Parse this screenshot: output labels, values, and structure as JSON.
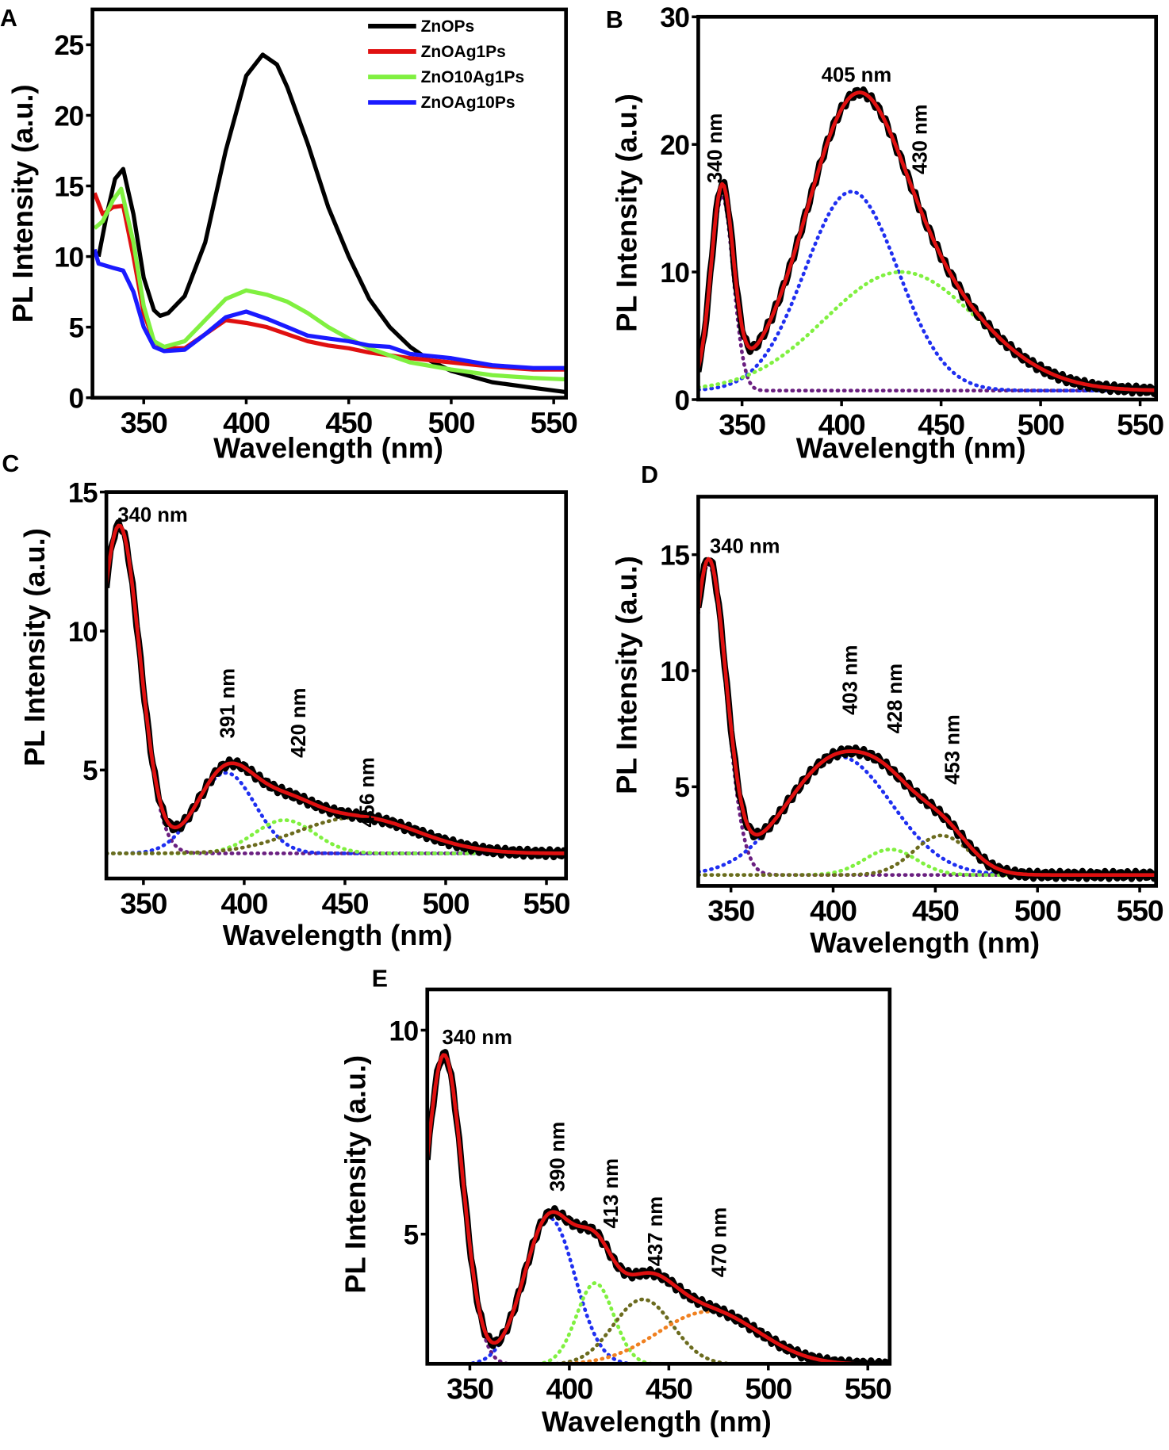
{
  "chart_data": [
    {
      "id": "A",
      "panel_label": "A",
      "type": "line",
      "xlabel": "Wavelength (nm)",
      "ylabel": "PL Intensity (a.u.)",
      "xlim": [
        325,
        556
      ],
      "ylim": [
        0,
        27.5
      ],
      "xticks": [
        350,
        400,
        450,
        500,
        550
      ],
      "yticks": [
        0,
        5,
        10,
        15,
        20,
        25
      ],
      "legend_position": "top-right",
      "series": [
        {
          "name": "ZnOPs",
          "color": "#000000",
          "x": [
            328,
            332,
            336,
            340,
            345,
            350,
            355,
            358,
            362,
            370,
            380,
            390,
            400,
            408,
            415,
            420,
            430,
            440,
            450,
            460,
            470,
            480,
            490,
            500,
            520,
            540,
            556
          ],
          "y": [
            10,
            13,
            15.5,
            16.2,
            13,
            8.5,
            6.2,
            5.8,
            6,
            7.2,
            11,
            17.5,
            22.8,
            24.3,
            23.6,
            22,
            18,
            13.5,
            10,
            7,
            5,
            3.6,
            2.6,
            1.9,
            1.1,
            0.7,
            0.4
          ]
        },
        {
          "name": "ZnOAg1Ps",
          "color": "#e01010",
          "x": [
            326,
            330,
            335,
            340,
            345,
            350,
            355,
            360,
            370,
            380,
            390,
            400,
            410,
            420,
            430,
            440,
            450,
            460,
            470,
            480,
            500,
            520,
            540,
            556
          ],
          "y": [
            14.5,
            13,
            13.5,
            13.6,
            10,
            6,
            4,
            3.5,
            3.5,
            4.5,
            5.5,
            5.3,
            5,
            4.5,
            4,
            3.7,
            3.5,
            3.2,
            3,
            2.8,
            2.5,
            2.2,
            2,
            2
          ]
        },
        {
          "name": "ZnO10Ag1Ps",
          "color": "#80f040",
          "x": [
            326,
            330,
            335,
            339,
            345,
            350,
            355,
            360,
            370,
            380,
            390,
            400,
            410,
            420,
            430,
            440,
            450,
            460,
            470,
            480,
            500,
            520,
            540,
            556
          ],
          "y": [
            12,
            12.5,
            14,
            14.8,
            11,
            6.5,
            4,
            3.6,
            4,
            5.5,
            7,
            7.6,
            7.3,
            6.8,
            6,
            5,
            4.2,
            3.5,
            3,
            2.5,
            2,
            1.6,
            1.4,
            1.3
          ]
        },
        {
          "name": "ZnOAg10Ps",
          "color": "#1a1aff",
          "x": [
            326,
            328,
            335,
            340,
            345,
            350,
            355,
            360,
            370,
            380,
            390,
            400,
            410,
            420,
            430,
            440,
            450,
            460,
            470,
            480,
            500,
            520,
            540,
            556
          ],
          "y": [
            10.5,
            9.5,
            9.2,
            9,
            7.5,
            5,
            3.6,
            3.3,
            3.4,
            4.5,
            5.7,
            6.1,
            5.6,
            5,
            4.4,
            4.2,
            4,
            3.7,
            3.6,
            3.1,
            2.8,
            2.3,
            2.1,
            2.1
          ]
        }
      ]
    },
    {
      "id": "B",
      "panel_label": "B",
      "type": "line",
      "xlabel": "Wavelength (nm)",
      "ylabel": "PL Intensity (a.u.)",
      "xlim": [
        328,
        558
      ],
      "ylim": [
        0,
        30
      ],
      "xticks": [
        350,
        400,
        450,
        500,
        550
      ],
      "yticks": [
        0,
        10,
        20,
        30
      ],
      "baseline": 0.7,
      "components": [
        {
          "center": 340,
          "height": 15.3,
          "fwhm": 13,
          "color": "#6a1f80"
        },
        {
          "center": 405,
          "height": 15.6,
          "fwhm": 55,
          "color": "#1f2ff0"
        },
        {
          "center": 430,
          "height": 9.3,
          "fwhm": 90,
          "color": "#80f040"
        }
      ],
      "annotations": [
        {
          "text": "405 nm",
          "x": 407.5,
          "y": 25.5,
          "rotated": false
        },
        {
          "text": "340 nm",
          "x": 336,
          "y": 19.7,
          "rotated": true
        },
        {
          "text": "430 nm",
          "x": 439,
          "y": 20.4,
          "rotated": true
        }
      ]
    },
    {
      "id": "C",
      "panel_label": "C",
      "type": "line",
      "xlabel": "Wavelength (nm)",
      "ylabel": "PL Intensity (a.u.)",
      "xlim": [
        331.6,
        559.7
      ],
      "ylim": [
        1.1,
        15
      ],
      "xticks": [
        350,
        400,
        450,
        500,
        550
      ],
      "yticks": [
        5,
        10,
        15
      ],
      "baseline": 2.0,
      "components": [
        {
          "center": 338,
          "height": 11.8,
          "fwhm": 24,
          "color": "#6a1f80"
        },
        {
          "center": 391,
          "height": 2.9,
          "fwhm": 34,
          "color": "#1f2ff0"
        },
        {
          "center": 420,
          "height": 1.2,
          "fwhm": 35,
          "color": "#80f040"
        },
        {
          "center": 456,
          "height": 1.3,
          "fwhm": 70,
          "color": "#6b6b1e"
        }
      ],
      "annotations": [
        {
          "text": "340 nm",
          "x": 354.6,
          "y": 14.2,
          "rotated": false
        },
        {
          "text": "391 nm",
          "x": 391.4,
          "y": 7.4,
          "rotated": true
        },
        {
          "text": "420 nm",
          "x": 426.7,
          "y": 6.7,
          "rotated": true
        },
        {
          "text": "456 nm",
          "x": 460.7,
          "y": 4.2,
          "rotated": true
        }
      ]
    },
    {
      "id": "D",
      "panel_label": "D",
      "type": "line",
      "xlabel": "Wavelength (nm)",
      "ylabel": "PL Intensity (a.u.)",
      "xlim": [
        334,
        558
      ],
      "ylim": [
        0.73,
        17.5
      ],
      "xticks": [
        350,
        400,
        450,
        500,
        550
      ],
      "yticks": [
        5,
        10,
        15
      ],
      "baseline": 1.2,
      "components": [
        {
          "center": 339,
          "height": 13.4,
          "fwhm": 20,
          "color": "#6a1f80"
        },
        {
          "center": 403,
          "height": 5.1,
          "fwhm": 60,
          "color": "#1f2ff0"
        },
        {
          "center": 428,
          "height": 1.1,
          "fwhm": 30,
          "color": "#80f040"
        },
        {
          "center": 453,
          "height": 1.7,
          "fwhm": 32,
          "color": "#6b6b1e"
        }
      ],
      "annotations": [
        {
          "text": "340 nm",
          "x": 356.8,
          "y": 15.4,
          "rotated": false
        },
        {
          "text": "403 nm",
          "x": 408,
          "y": 9.6,
          "rotated": true
        },
        {
          "text": "428 nm",
          "x": 430,
          "y": 8.8,
          "rotated": true
        },
        {
          "text": "453 nm",
          "x": 458,
          "y": 6.6,
          "rotated": true
        }
      ]
    },
    {
      "id": "E",
      "panel_label": "E",
      "type": "line",
      "xlabel": "Wavelength (nm)",
      "ylabel": "PL Intensity (a.u.)",
      "xlim": [
        328.6,
        561
      ],
      "ylim": [
        1.82,
        11
      ],
      "xticks": [
        350,
        400,
        450,
        500,
        550
      ],
      "yticks": [
        5,
        10
      ],
      "baseline": 1.8,
      "components": [
        {
          "center": 337,
          "height": 7.6,
          "fwhm": 22,
          "color": "#6a1f80"
        },
        {
          "center": 390,
          "height": 3.6,
          "fwhm": 30,
          "color": "#1f2ff0"
        },
        {
          "center": 413,
          "height": 2.0,
          "fwhm": 22,
          "color": "#80f040"
        },
        {
          "center": 437,
          "height": 1.6,
          "fwhm": 35,
          "color": "#6b6b1e"
        },
        {
          "center": 470,
          "height": 1.3,
          "fwhm": 60,
          "color": "#f08020"
        }
      ],
      "annotations": [
        {
          "text": "340 nm",
          "x": 353.7,
          "y": 9.84,
          "rotated": false
        },
        {
          "text": "390 nm",
          "x": 393.7,
          "y": 6.9,
          "rotated": true
        },
        {
          "text": "413 nm",
          "x": 420.7,
          "y": 6.0,
          "rotated": true
        },
        {
          "text": "437 nm",
          "x": 443,
          "y": 5.07,
          "rotated": true
        },
        {
          "text": "470 nm",
          "x": 475,
          "y": 4.8,
          "rotated": true
        }
      ]
    }
  ]
}
